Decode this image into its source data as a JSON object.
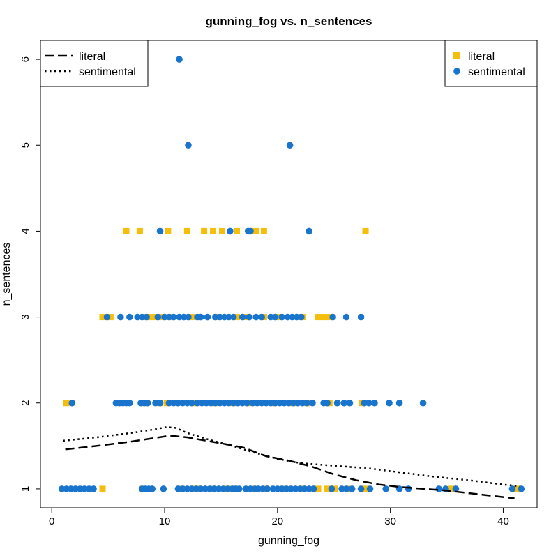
{
  "chart_data": {
    "type": "scatter",
    "title": "gunning_fog vs. n_sentences",
    "xlabel": "gunning_fog",
    "ylabel": "n_sentences",
    "xlim": [
      -1,
      43
    ],
    "ylim": [
      0.78,
      6.22
    ],
    "xticks": [
      0,
      10,
      20,
      30,
      40
    ],
    "yticks": [
      1,
      2,
      3,
      4,
      5,
      6
    ],
    "grid": false,
    "series": [
      {
        "name": "literal",
        "marker": "square",
        "color": "#F5BD0C",
        "points": [
          [
            4.5,
            1
          ],
          [
            8.1,
            1
          ],
          [
            11.5,
            1
          ],
          [
            12.8,
            1
          ],
          [
            14.2,
            1
          ],
          [
            15.6,
            1
          ],
          [
            16.4,
            1
          ],
          [
            17.8,
            1
          ],
          [
            18.9,
            1
          ],
          [
            20.5,
            1
          ],
          [
            22.1,
            1
          ],
          [
            23.6,
            1
          ],
          [
            24.4,
            1
          ],
          [
            25.1,
            1
          ],
          [
            26.2,
            1
          ],
          [
            27.8,
            1
          ],
          [
            35.4,
            1
          ],
          [
            41.2,
            1
          ],
          [
            1.3,
            2
          ],
          [
            8.2,
            2
          ],
          [
            9.6,
            2
          ],
          [
            10.2,
            2
          ],
          [
            12.6,
            2
          ],
          [
            14.4,
            2
          ],
          [
            16.1,
            2
          ],
          [
            17.4,
            2
          ],
          [
            19.7,
            2
          ],
          [
            21.4,
            2
          ],
          [
            22.6,
            2
          ],
          [
            24.6,
            2
          ],
          [
            27.5,
            2
          ],
          [
            4.5,
            3
          ],
          [
            5.2,
            3
          ],
          [
            8.4,
            3
          ],
          [
            8.8,
            3
          ],
          [
            9.2,
            3
          ],
          [
            9.8,
            3
          ],
          [
            10.6,
            3
          ],
          [
            12.4,
            3
          ],
          [
            14.6,
            3
          ],
          [
            16.4,
            3
          ],
          [
            17.3,
            3
          ],
          [
            18.8,
            3
          ],
          [
            20.1,
            3
          ],
          [
            22.2,
            3
          ],
          [
            23.6,
            3
          ],
          [
            24.1,
            3
          ],
          [
            24.6,
            3
          ],
          [
            6.6,
            4
          ],
          [
            7.8,
            4
          ],
          [
            10.3,
            4
          ],
          [
            12,
            4
          ],
          [
            13.5,
            4
          ],
          [
            14.3,
            4
          ],
          [
            15.1,
            4
          ],
          [
            16.4,
            4
          ],
          [
            17.6,
            4
          ],
          [
            18.1,
            4
          ],
          [
            18.8,
            4
          ],
          [
            27.8,
            4
          ]
        ]
      },
      {
        "name": "sentimental",
        "marker": "circle",
        "color": "#1874CD",
        "points": [
          [
            0.9,
            1
          ],
          [
            1.3,
            1
          ],
          [
            1.7,
            1
          ],
          [
            2.1,
            1
          ],
          [
            2.5,
            1
          ],
          [
            2.9,
            1
          ],
          [
            3.3,
            1
          ],
          [
            3.7,
            1
          ],
          [
            8,
            1
          ],
          [
            8.3,
            1
          ],
          [
            8.6,
            1
          ],
          [
            8.9,
            1
          ],
          [
            9.9,
            1
          ],
          [
            11.2,
            1
          ],
          [
            11.6,
            1
          ],
          [
            12,
            1
          ],
          [
            12.4,
            1
          ],
          [
            12.8,
            1
          ],
          [
            13.2,
            1
          ],
          [
            13.6,
            1
          ],
          [
            14,
            1
          ],
          [
            14.4,
            1
          ],
          [
            14.8,
            1
          ],
          [
            15.2,
            1
          ],
          [
            15.6,
            1
          ],
          [
            16,
            1
          ],
          [
            16.3,
            1
          ],
          [
            16.6,
            1
          ],
          [
            17.2,
            1
          ],
          [
            17.6,
            1
          ],
          [
            18,
            1
          ],
          [
            18.3,
            1
          ],
          [
            18.7,
            1
          ],
          [
            19.1,
            1
          ],
          [
            19.6,
            1
          ],
          [
            20,
            1
          ],
          [
            20.4,
            1
          ],
          [
            20.8,
            1
          ],
          [
            21.2,
            1
          ],
          [
            21.6,
            1
          ],
          [
            22,
            1
          ],
          [
            22.4,
            1
          ],
          [
            22.8,
            1
          ],
          [
            23.2,
            1
          ],
          [
            24.8,
            1
          ],
          [
            25.7,
            1
          ],
          [
            26.1,
            1
          ],
          [
            26.6,
            1
          ],
          [
            27.4,
            1
          ],
          [
            28.2,
            1
          ],
          [
            29.6,
            1
          ],
          [
            30.8,
            1
          ],
          [
            31.6,
            1
          ],
          [
            34.3,
            1
          ],
          [
            34.9,
            1
          ],
          [
            35.8,
            1
          ],
          [
            40.8,
            1
          ],
          [
            41.6,
            1
          ],
          [
            1.8,
            2
          ],
          [
            5.7,
            2
          ],
          [
            6,
            2
          ],
          [
            6.3,
            2
          ],
          [
            6.6,
            2
          ],
          [
            6.9,
            2
          ],
          [
            7.9,
            2
          ],
          [
            8.2,
            2
          ],
          [
            8.5,
            2
          ],
          [
            9.2,
            2
          ],
          [
            9.6,
            2
          ],
          [
            10.4,
            2
          ],
          [
            10.8,
            2
          ],
          [
            11.2,
            2
          ],
          [
            11.6,
            2
          ],
          [
            12,
            2
          ],
          [
            12.4,
            2
          ],
          [
            12.9,
            2
          ],
          [
            13.3,
            2
          ],
          [
            13.7,
            2
          ],
          [
            14.1,
            2
          ],
          [
            14.5,
            2
          ],
          [
            14.9,
            2
          ],
          [
            15.3,
            2
          ],
          [
            15.7,
            2
          ],
          [
            16.1,
            2
          ],
          [
            16.5,
            2
          ],
          [
            16.9,
            2
          ],
          [
            17.3,
            2
          ],
          [
            17.8,
            2
          ],
          [
            18.2,
            2
          ],
          [
            18.6,
            2
          ],
          [
            19,
            2
          ],
          [
            19.4,
            2
          ],
          [
            19.8,
            2
          ],
          [
            20.2,
            2
          ],
          [
            20.6,
            2
          ],
          [
            21,
            2
          ],
          [
            21.4,
            2
          ],
          [
            21.8,
            2
          ],
          [
            22.2,
            2
          ],
          [
            22.6,
            2
          ],
          [
            23.1,
            2
          ],
          [
            24.1,
            2
          ],
          [
            24.4,
            2
          ],
          [
            25.3,
            2
          ],
          [
            25.9,
            2
          ],
          [
            26.4,
            2
          ],
          [
            27.7,
            2
          ],
          [
            28.1,
            2
          ],
          [
            28.6,
            2
          ],
          [
            29.9,
            2
          ],
          [
            30.8,
            2
          ],
          [
            32.9,
            2
          ],
          [
            4.9,
            3
          ],
          [
            6.1,
            3
          ],
          [
            6.9,
            3
          ],
          [
            7.6,
            3
          ],
          [
            8,
            3
          ],
          [
            8.4,
            3
          ],
          [
            9.4,
            3
          ],
          [
            10,
            3
          ],
          [
            10.4,
            3
          ],
          [
            10.8,
            3
          ],
          [
            11.3,
            3
          ],
          [
            11.7,
            3
          ],
          [
            12.1,
            3
          ],
          [
            12.9,
            3
          ],
          [
            13.2,
            3
          ],
          [
            13.8,
            3
          ],
          [
            14.5,
            3
          ],
          [
            14.9,
            3
          ],
          [
            15.3,
            3
          ],
          [
            15.7,
            3
          ],
          [
            16.1,
            3
          ],
          [
            16.9,
            3
          ],
          [
            17.5,
            3
          ],
          [
            18.1,
            3
          ],
          [
            18.6,
            3
          ],
          [
            19.4,
            3
          ],
          [
            19.8,
            3
          ],
          [
            20.4,
            3
          ],
          [
            20.9,
            3
          ],
          [
            21.3,
            3
          ],
          [
            21.7,
            3
          ],
          [
            22.1,
            3
          ],
          [
            24.9,
            3
          ],
          [
            26.1,
            3
          ],
          [
            27.4,
            3
          ],
          [
            9.6,
            4
          ],
          [
            15.8,
            4
          ],
          [
            17.4,
            4
          ],
          [
            17.6,
            4
          ],
          [
            22.8,
            4
          ],
          [
            12.1,
            5
          ],
          [
            21.1,
            5
          ],
          [
            11.3,
            6
          ]
        ]
      }
    ],
    "lines": [
      {
        "name": "literal",
        "style": "dashed",
        "points": [
          [
            1.2,
            1.46
          ],
          [
            4,
            1.5
          ],
          [
            7,
            1.55
          ],
          [
            9,
            1.59
          ],
          [
            10.5,
            1.62
          ],
          [
            12,
            1.6
          ],
          [
            15,
            1.53
          ],
          [
            17,
            1.48
          ],
          [
            19,
            1.38
          ],
          [
            21,
            1.33
          ],
          [
            23,
            1.26
          ],
          [
            25,
            1.17
          ],
          [
            27,
            1.1
          ],
          [
            29,
            1.05
          ],
          [
            31,
            1.02
          ],
          [
            33,
            1
          ],
          [
            35,
            0.98
          ],
          [
            37,
            0.95
          ],
          [
            39,
            0.92
          ],
          [
            41,
            0.89
          ]
        ]
      },
      {
        "name": "sentimental",
        "style": "dotted",
        "points": [
          [
            1,
            1.56
          ],
          [
            4,
            1.6
          ],
          [
            7,
            1.65
          ],
          [
            9,
            1.69
          ],
          [
            10.2,
            1.72
          ],
          [
            11,
            1.71
          ],
          [
            12,
            1.65
          ],
          [
            14,
            1.57
          ],
          [
            16,
            1.5
          ],
          [
            18,
            1.42
          ],
          [
            20,
            1.35
          ],
          [
            22,
            1.3
          ],
          [
            25,
            1.27
          ],
          [
            28,
            1.24
          ],
          [
            31,
            1.19
          ],
          [
            34,
            1.14
          ],
          [
            37,
            1.1
          ],
          [
            40,
            1.05
          ],
          [
            41.5,
            1.03
          ]
        ]
      }
    ],
    "legend_lines": {
      "placement": "top-left",
      "entries": [
        {
          "label": "literal",
          "style": "dashed"
        },
        {
          "label": "sentimental",
          "style": "dotted"
        }
      ]
    },
    "legend_points": {
      "placement": "top-right",
      "entries": [
        {
          "label": "literal",
          "marker": "square",
          "color": "#F5BD0C"
        },
        {
          "label": "sentimental",
          "marker": "circle",
          "color": "#1874CD"
        }
      ]
    }
  }
}
